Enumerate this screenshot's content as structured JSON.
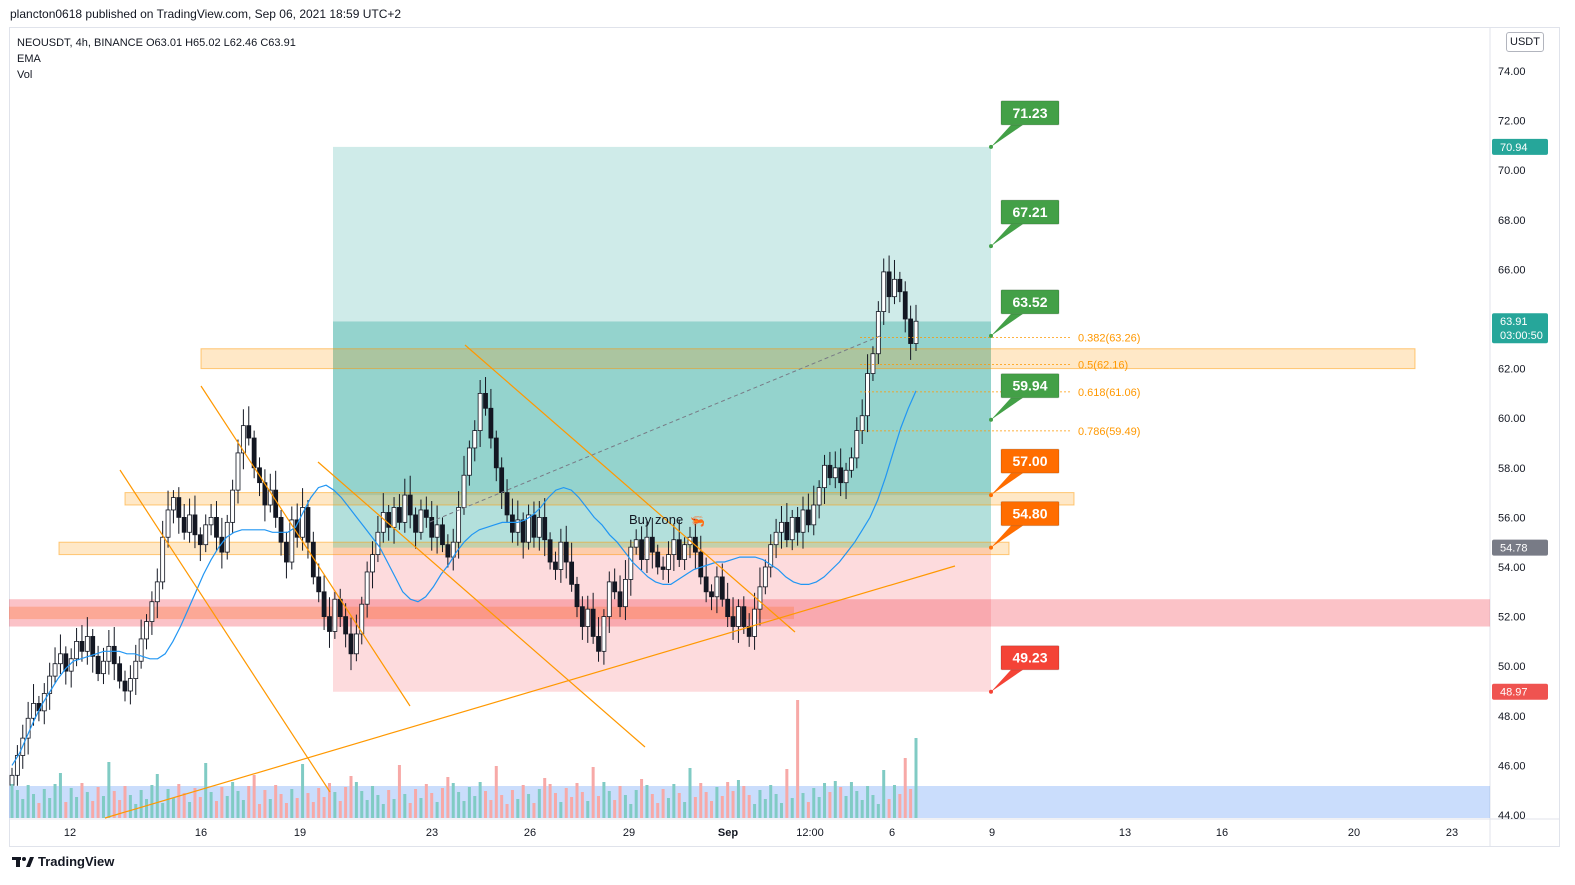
{
  "header": {
    "published_text": "plancton0618 published on TradingView.com, Sep 06, 2021 18:59 UTC+2"
  },
  "legend": {
    "symbol_line": "NEOUSDT, 4h, BINANCE  O63.01  H65.02  L62.46  C63.91",
    "ema_label": "EMA",
    "vol_label": "Vol"
  },
  "currency_button": "USDT",
  "footer": {
    "brand": "TradingView",
    "logo_icon": "tradingview-logo-icon"
  },
  "colors": {
    "up": "#26a69a",
    "down": "#ef5350",
    "vol_up": "#80cbc4",
    "vol_down": "#f7a9a7",
    "ema": "#2196f3",
    "target_box": "#26a69a",
    "stop_box": "#f23645",
    "zone": "#ff9800",
    "fib": "#ff9800"
  },
  "chart_data": {
    "type": "candlestick",
    "symbol": "NEOUSDT",
    "interval": "4h",
    "exchange": "BINANCE",
    "ohlc_last": {
      "open": 63.01,
      "high": 65.02,
      "low": 62.46,
      "close": 63.91
    },
    "y_axis": {
      "ticks": [
        "74.00",
        "72.00",
        "70.00",
        "68.00",
        "66.00",
        "64.00",
        "62.00",
        "60.00",
        "58.00",
        "56.00",
        "54.00",
        "52.00",
        "50.00",
        "48.00",
        "46.00",
        "44.00"
      ],
      "ylim": [
        44,
        75.6
      ]
    },
    "x_axis": {
      "ticks": [
        "12",
        "16",
        "19",
        "23",
        "26",
        "29",
        "Sep",
        "12:00",
        "6",
        "9",
        "13",
        "16",
        "20",
        "23"
      ]
    },
    "closes": [
      45.6,
      46.4,
      47.1,
      47.9,
      48.5,
      48.2,
      48.9,
      49.6,
      50.1,
      50.5,
      49.8,
      50.3,
      51.0,
      50.6,
      51.2,
      50.4,
      49.7,
      50.2,
      50.8,
      50.1,
      49.4,
      49.0,
      49.5,
      50.2,
      51.1,
      51.8,
      52.6,
      53.4,
      55.2,
      56.3,
      56.8,
      56.0,
      55.4,
      56.1,
      55.3,
      54.9,
      55.7,
      56.0,
      55.2,
      54.6,
      55.8,
      57.1,
      58.6,
      59.7,
      59.2,
      58.0,
      57.4,
      56.5,
      57.1,
      56.0,
      55.0,
      54.2,
      55.9,
      55.2,
      56.4,
      55.0,
      53.6,
      53.0,
      52.0,
      51.4,
      52.7,
      52.0,
      51.3,
      50.5,
      51.3,
      52.5,
      53.8,
      54.5,
      55.4,
      56.2,
      55.6,
      56.4,
      55.8,
      56.9,
      56.1,
      55.4,
      56.3,
      56.0,
      55.2,
      55.7,
      54.9,
      54.4,
      55.0,
      56.4,
      57.7,
      58.8,
      59.5,
      61.0,
      60.4,
      59.2,
      58.0,
      57.0,
      56.1,
      55.4,
      55.9,
      55.0,
      56.1,
      55.2,
      56.0,
      55.1,
      54.2,
      53.9,
      55.0,
      54.2,
      53.3,
      52.4,
      51.6,
      52.3,
      51.2,
      50.6,
      52.0,
      53.4,
      53.0,
      52.4,
      53.5,
      54.8,
      55.1,
      54.3,
      55.2,
      54.6,
      54.0,
      53.9,
      54.5,
      55.1,
      54.3,
      54.9,
      55.2,
      54.6,
      53.6,
      53.0,
      52.8,
      53.6,
      52.7,
      52.0,
      51.6,
      52.4,
      51.6,
      51.2,
      52.3,
      53.2,
      54.0,
      54.9,
      55.4,
      55.8,
      55.1,
      56.0,
      55.4,
      56.3,
      55.7,
      56.5,
      57.2,
      58.1,
      57.6,
      58.0,
      57.4,
      57.9,
      58.4,
      59.5,
      60.1,
      61.8,
      62.6,
      64.3,
      65.9,
      64.9,
      65.6,
      65.1,
      64.0,
      63.01,
      63.91
    ],
    "ema": [
      46.0,
      46.5,
      47.2,
      47.9,
      48.5,
      49.0,
      49.5,
      49.9,
      50.2,
      50.3,
      50.4,
      50.5,
      50.6,
      50.6,
      50.6,
      50.5,
      50.5,
      50.4,
      50.3,
      50.3,
      50.5,
      51.0,
      51.6,
      52.3,
      53.0,
      53.7,
      54.3,
      54.8,
      55.2,
      55.4,
      55.5,
      55.5,
      55.5,
      55.5,
      55.4,
      55.4,
      55.4,
      55.6,
      56.2,
      56.8,
      57.2,
      57.3,
      57.1,
      56.8,
      56.4,
      56.0,
      55.6,
      55.2,
      54.8,
      54.2,
      53.6,
      53.0,
      52.7,
      52.6,
      52.8,
      53.2,
      53.7,
      54.1,
      54.6,
      55.0,
      55.3,
      55.5,
      55.6,
      55.7,
      55.8,
      55.8,
      55.8,
      55.9,
      56.1,
      56.4,
      56.8,
      57.1,
      57.2,
      57.1,
      56.8,
      56.4,
      56.0,
      55.7,
      55.3,
      55.0,
      54.6,
      54.2,
      53.9,
      53.6,
      53.4,
      53.3,
      53.3,
      53.5,
      53.7,
      53.9,
      54.0,
      54.1,
      54.2,
      54.2,
      54.3,
      54.4,
      54.4,
      54.4,
      54.3,
      54.1,
      53.9,
      53.6,
      53.4,
      53.3,
      53.3,
      53.4,
      53.6,
      53.9,
      54.2,
      54.6,
      55.0,
      55.5,
      56.0,
      56.7,
      57.6,
      58.6,
      59.6,
      60.4,
      61.1
    ],
    "position_tool": {
      "entry_zone_top": 56.9,
      "entry_zone_bottom": 54.78,
      "target": 70.94,
      "stop": 48.97,
      "label": "Buy zone"
    },
    "target_labels": [
      "71.23",
      "67.21",
      "63.52",
      "59.94"
    ],
    "stop_labels": [
      "57.00",
      "54.80",
      "49.23"
    ],
    "fib_levels": [
      {
        "label": "0.382(63.26)",
        "value": 63.26
      },
      {
        "label": "0.5(62.16)",
        "value": 62.16
      },
      {
        "label": "0.618(61.06)",
        "value": 61.06
      },
      {
        "label": "0.786(59.49)",
        "value": 59.49
      }
    ],
    "price_tags": [
      {
        "text": "70.94",
        "value": 70.94,
        "color": "#26a69a"
      },
      {
        "text": "63.91",
        "sub": "03:00:50",
        "value": 63.91,
        "color": "#26a69a"
      },
      {
        "text": "54.78",
        "value": 54.78,
        "color": "#787b86"
      },
      {
        "text": "48.97",
        "value": 48.97,
        "color": "#ef5350"
      }
    ]
  }
}
